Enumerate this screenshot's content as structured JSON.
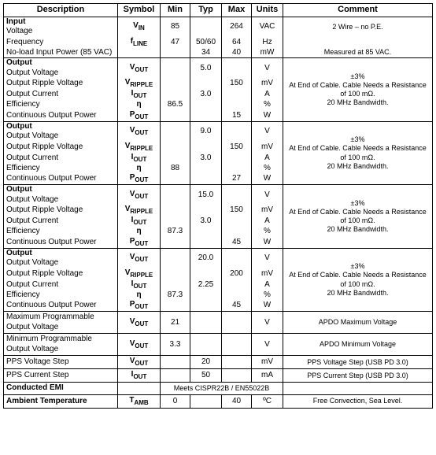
{
  "headers": {
    "description": "Description",
    "symbol": "Symbol",
    "min": "Min",
    "typ": "Typ",
    "max": "Max",
    "units": "Units",
    "comment": "Comment"
  },
  "sections": [
    {
      "title": "Input",
      "rows": [
        {
          "desc": "Voltage",
          "sym": "V",
          "sub": "IN",
          "min": "85",
          "typ": "",
          "max": "264",
          "units": "VAC",
          "comment": "2 Wire – no P.E."
        },
        {
          "desc": "Frequency",
          "sym": "f",
          "sub": "LINE",
          "min": "47",
          "typ": "50/60",
          "max": "64",
          "units": "Hz",
          "comment": ""
        },
        {
          "desc": "No-load Input Power (85 VAC)",
          "sym": "",
          "sub": "",
          "min": "",
          "typ": "34",
          "max": "40",
          "units": "mW",
          "comment": "Measured at 85 VAC."
        }
      ]
    },
    {
      "title": "Output",
      "comment_block": "±3%\nAt End of Cable. Cable Needs a Resistance of 100 mΩ.\n20 MHz Bandwidth.",
      "rows": [
        {
          "desc": "Output Voltage",
          "sym": "V",
          "sub": "OUT",
          "min": "",
          "typ": "5.0",
          "max": "",
          "units": "V"
        },
        {
          "desc": "Output Ripple Voltage",
          "sym": "V",
          "sub": "RIPPLE",
          "min": "",
          "typ": "",
          "max": "150",
          "units": "mV"
        },
        {
          "desc": "Output Current",
          "sym": "I",
          "sub": "OUT",
          "min": "",
          "typ": "3.0",
          "max": "",
          "units": "A"
        },
        {
          "desc": "Efficiency",
          "sym": "η",
          "sub": "",
          "min": "86.5",
          "typ": "",
          "max": "",
          "units": "%"
        },
        {
          "desc": "Continuous Output Power",
          "sym": "P",
          "sub": "OUT",
          "min": "",
          "typ": "",
          "max": "15",
          "units": "W"
        }
      ]
    },
    {
      "title": "Output",
      "comment_block": "±3%\nAt End of Cable. Cable Needs a Resistance of 100 mΩ.\n20 MHz Bandwidth.",
      "rows": [
        {
          "desc": "Output Voltage",
          "sym": "V",
          "sub": "OUT",
          "min": "",
          "typ": "9.0",
          "max": "",
          "units": "V"
        },
        {
          "desc": "Output Ripple Voltage",
          "sym": "V",
          "sub": "RIPPLE",
          "min": "",
          "typ": "",
          "max": "150",
          "units": "mV"
        },
        {
          "desc": "Output Current",
          "sym": "I",
          "sub": "OUT",
          "min": "",
          "typ": "3.0",
          "max": "",
          "units": "A"
        },
        {
          "desc": "Efficiency",
          "sym": "η",
          "sub": "",
          "min": "88",
          "typ": "",
          "max": "",
          "units": "%"
        },
        {
          "desc": "Continuous Output Power",
          "sym": "P",
          "sub": "OUT",
          "min": "",
          "typ": "",
          "max": "27",
          "units": "W"
        }
      ]
    },
    {
      "title": "Output",
      "comment_block": "±3%\nAt End of Cable. Cable Needs a Resistance of 100 mΩ.\n20 MHz Bandwidth.",
      "rows": [
        {
          "desc": "Output Voltage",
          "sym": "V",
          "sub": "OUT",
          "min": "",
          "typ": "15.0",
          "max": "",
          "units": "V"
        },
        {
          "desc": "Output Ripple Voltage",
          "sym": "V",
          "sub": "RIPPLE",
          "min": "",
          "typ": "",
          "max": "150",
          "units": "mV"
        },
        {
          "desc": "Output Current",
          "sym": "I",
          "sub": "OUT",
          "min": "",
          "typ": "3.0",
          "max": "",
          "units": "A"
        },
        {
          "desc": "Efficiency",
          "sym": "η",
          "sub": "",
          "min": "87.3",
          "typ": "",
          "max": "",
          "units": "%"
        },
        {
          "desc": "Continuous Output Power",
          "sym": "P",
          "sub": "OUT",
          "min": "",
          "typ": "",
          "max": "45",
          "units": "W"
        }
      ]
    },
    {
      "title": "Output",
      "comment_block": "±3%\nAt End of Cable. Cable Needs a Resistance of 100 mΩ.\n20 MHz Bandwidth.",
      "rows": [
        {
          "desc": "Output Voltage",
          "sym": "V",
          "sub": "OUT",
          "min": "",
          "typ": "20.0",
          "max": "",
          "units": "V"
        },
        {
          "desc": "Output Ripple Voltage",
          "sym": "V",
          "sub": "RIPPLE",
          "min": "",
          "typ": "",
          "max": "200",
          "units": "mV"
        },
        {
          "desc": "Output Current",
          "sym": "I",
          "sub": "OUT",
          "min": "",
          "typ": "2.25",
          "max": "",
          "units": "A"
        },
        {
          "desc": "Efficiency",
          "sym": "η",
          "sub": "",
          "min": "87.3",
          "typ": "",
          "max": "",
          "units": "%"
        },
        {
          "desc": "Continuous Output Power",
          "sym": "P",
          "sub": "OUT",
          "min": "",
          "typ": "",
          "max": "45",
          "units": "W"
        }
      ]
    }
  ],
  "singles": [
    {
      "desc": "Maximum Programmable Output Voltage",
      "sym": "V",
      "sub": "OUT",
      "min": "21",
      "typ": "",
      "max": "",
      "units": "V",
      "comment": "APDO Maximum Voltage"
    },
    {
      "desc": "Minimum Programmable Output Voltage",
      "sym": "V",
      "sub": "OUT",
      "min": "3.3",
      "typ": "",
      "max": "",
      "units": "V",
      "comment": "APDO Minimum Voltage"
    },
    {
      "desc": "PPS Voltage Step",
      "sym": "V",
      "sub": "OUT",
      "min": "",
      "typ": "20",
      "max": "",
      "units": "mV",
      "comment": "PPS Voltage Step (USB PD 3.0)"
    },
    {
      "desc": "PPS Current Step",
      "sym": "I",
      "sub": "OUT",
      "min": "",
      "typ": "50",
      "max": "",
      "units": "mA",
      "comment": "PPS Current Step (USB PD 3.0)"
    }
  ],
  "emi": {
    "desc": "Conducted EMI",
    "text": "Meets CISPR22B / EN55022B"
  },
  "ambient": {
    "desc": "Ambient Temperature",
    "sym": "T",
    "sub": "AMB",
    "min": "0",
    "typ": "",
    "max": "40",
    "units": "ºC",
    "comment": "Free Convection, Sea Level."
  }
}
